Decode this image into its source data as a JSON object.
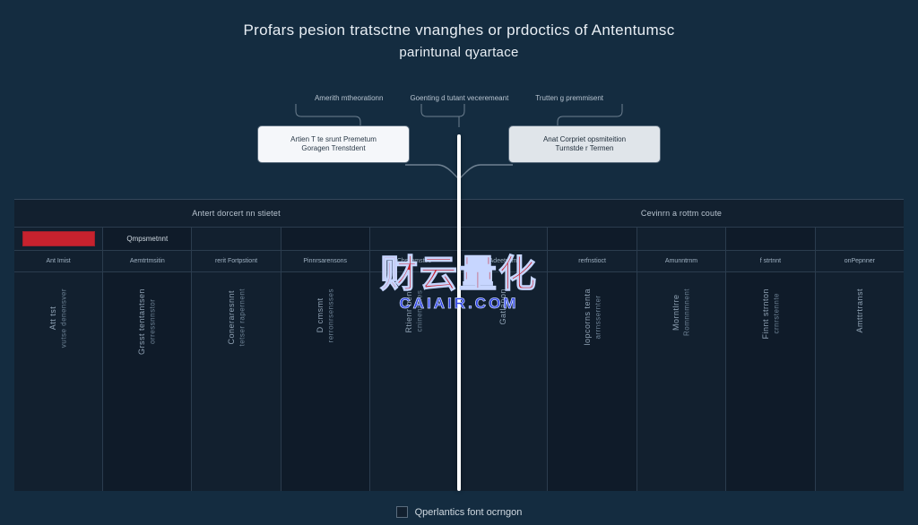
{
  "colors": {
    "page_bg": "#142c40",
    "panel_bg": "#12202f",
    "panel_bg_alt": "#0f1b29",
    "title_text": "#e8eef4",
    "muted_text": "#b8c4d0",
    "grid_line": "#2b3c4e",
    "outer_line": "#33465a",
    "box_left_bg": "#f5f7fa",
    "box_left_text": "#2b3a48",
    "box_right_bg": "#e0e5ea",
    "box_right_text": "#1c2a37",
    "red": "#c7222e",
    "divider": "#ffffff",
    "legend_swatch": "#12202f",
    "connector": "#6e8091",
    "watermark": "#c7222e"
  },
  "title": {
    "line1": "Profars pesion tratsctne vnanghes or prdoctics of Antentumsc",
    "line2": "parintunal qyartace"
  },
  "bracket_labels": [
    "Amerith mtheorationn",
    "Goenting d tutant veceremeant",
    "Trutten g premmisent"
  ],
  "flow": {
    "left": {
      "line1": "Artien T te srunt Premetum",
      "line2": "Goragen Trenstdent"
    },
    "right": {
      "line1": "Anat Corpriet opsmiteition",
      "line2": "Turnstde r Termen"
    }
  },
  "table": {
    "left": {
      "title": "Antert dorcert nn stietet",
      "headers": [
        "",
        "Qmpsmetnnt",
        "",
        "",
        ""
      ],
      "subheaders": [
        "Ant Imist",
        "Aemtrtmsitin",
        "rerit Fortpstiont",
        "Pinnrsarensons",
        "Chsiinmstes"
      ],
      "columns": [
        {
          "line1": "Att tst",
          "line2": "vutse denensver"
        },
        {
          "line1": "Grsst tentantsen",
          "line2": "orressnnstor"
        },
        {
          "line1": "Coneraresnnt",
          "line2": "tetser rapernent"
        },
        {
          "line1": "D cmsmt",
          "line2": "rerronrsensses"
        },
        {
          "line1": "Rtienr bent",
          "line2": "cninentrnes"
        }
      ]
    },
    "right": {
      "title": "Cevinrn a rottm coute",
      "headers": [
        "",
        "",
        "",
        "",
        ""
      ],
      "subheaders": [
        "Adeetstim",
        "rerfnstioct",
        "Amunntrnm",
        "f strtnnt",
        "onPepnner"
      ],
      "columns": [
        {
          "line1": "Gatlanon",
          "line2": ""
        },
        {
          "line1": "lopcorns tenta",
          "line2": "arrnssernter"
        },
        {
          "line1": "Morntlrre",
          "line2": "Romnnmnent"
        },
        {
          "line1": "Finnt strnton",
          "line2": "crnrstennte"
        },
        {
          "line1": "Amttrtranst",
          "line2": ""
        }
      ]
    }
  },
  "legend": {
    "label": "Qperlantics font ocrngon"
  },
  "watermark": {
    "big": "财云量化",
    "small": "CAIAIR.COM"
  }
}
